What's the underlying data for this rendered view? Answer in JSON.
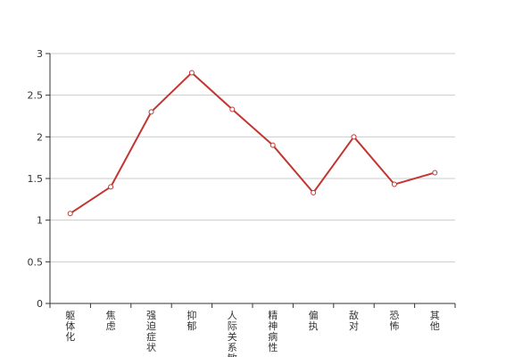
{
  "chart_data": {
    "type": "line",
    "title": "",
    "xlabel": "",
    "ylabel": "",
    "categories": [
      "躯体化",
      "焦虑",
      "强迫症状",
      "抑郁",
      "人际关系敏感",
      "精神病性",
      "偏执",
      "敌对",
      "恐怖",
      "其他"
    ],
    "series": [
      {
        "values": [
          1.08,
          1.4,
          2.3,
          2.77,
          2.33,
          1.9,
          1.33,
          2.0,
          1.43,
          1.57
        ],
        "color": "#c23531"
      }
    ],
    "ylim": [
      0,
      3
    ],
    "yticks": [
      "0",
      "0.5",
      "1",
      "1.5",
      "2",
      "2.5",
      "3"
    ],
    "grid": true,
    "legend": "none"
  }
}
